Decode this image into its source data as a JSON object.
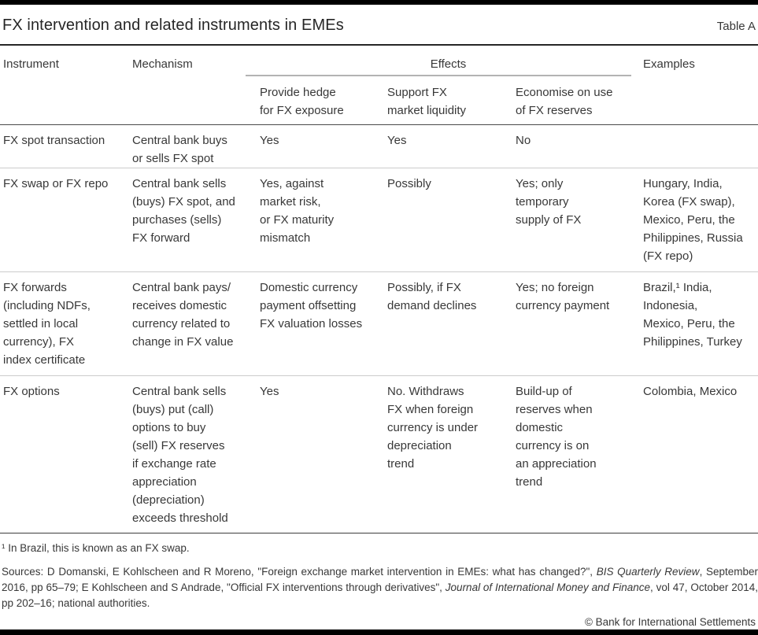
{
  "page": {
    "title": "FX intervention and related instruments in EMEs",
    "table_label": "Table A",
    "copyright": "© Bank for International Settlements"
  },
  "table": {
    "headers": {
      "instrument": "Instrument",
      "mechanism": "Mechanism",
      "effects": "Effects",
      "examples": "Examples",
      "effect_subheaders": {
        "hedge": "Provide hedge\nfor FX exposure",
        "liquidity": "Support FX\nmarket liquidity",
        "reserves": "Economise on use\nof FX reserves"
      }
    },
    "rows": [
      {
        "instrument": "FX spot transaction",
        "mechanism": "Central bank buys\nor sells FX spot",
        "hedge": "Yes",
        "liquidity": "Yes",
        "reserves": "No",
        "examples": ""
      },
      {
        "instrument": "FX swap or FX repo",
        "mechanism": "Central bank sells\n(buys) FX spot, and\npurchases (sells)\nFX forward",
        "hedge": "Yes, against\nmarket risk,\nor FX maturity\nmismatch",
        "liquidity": "Possibly",
        "reserves": "Yes; only\ntemporary\nsupply of FX",
        "examples": "Hungary, India,\nKorea (FX swap),\nMexico, Peru, the\nPhilippines, Russia\n(FX repo)"
      },
      {
        "instrument": "FX forwards\n(including NDFs,\nsettled in local\ncurrency), FX\nindex certificate",
        "mechanism": "Central bank pays/\nreceives domestic\ncurrency related to\nchange in FX value",
        "hedge": "Domestic currency\npayment offsetting\nFX valuation losses",
        "liquidity": "Possibly, if FX\ndemand declines",
        "reserves": "Yes; no foreign\ncurrency payment",
        "examples": "Brazil,¹ India,\nIndonesia,\nMexico, Peru, the\nPhilippines, Turkey"
      },
      {
        "instrument": "FX options",
        "mechanism": "Central bank sells\n(buys) put (call)\noptions to buy\n(sell) FX reserves\nif exchange rate\nappreciation\n(depreciation)\nexceeds threshold",
        "hedge": "Yes",
        "liquidity": "No. Withdraws\nFX when foreign\ncurrency is under\ndepreciation\ntrend",
        "reserves": "Build-up of\nreserves when\ndomestic\ncurrency is on\nan appreciation\ntrend",
        "examples": "Colombia, Mexico"
      }
    ]
  },
  "footnote": "¹ In Brazil, this is known as an FX swap.",
  "sources": {
    "segments": [
      {
        "text": "Sources: D Domanski, E Kohlscheen and R Moreno, \"Foreign exchange market intervention in EMEs: what has changed?\", "
      },
      {
        "text": "BIS Quarterly Review"
      },
      {
        "text": ", September 2016, pp 65–79; E Kohlscheen and S Andrade, \"Official FX interventions through derivatives\", "
      },
      {
        "text": "Journal of International Money and Finance"
      },
      {
        "text": ", vol 47, October 2014, pp 202–16; national authorities."
      }
    ]
  },
  "colors": {
    "text": "#383838",
    "rule_dark": "#3d3d3d",
    "rule_light": "#cccccc",
    "effects_underline": "#b3b3b3",
    "bar": "#000000"
  }
}
